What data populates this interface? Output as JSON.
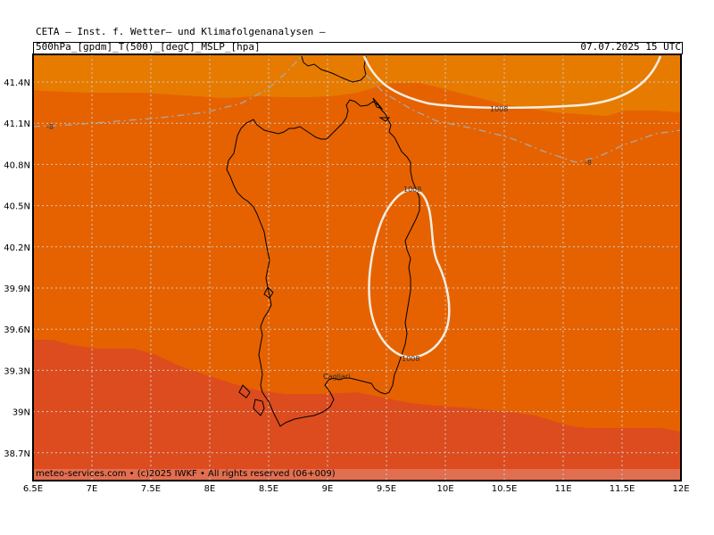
{
  "header": {
    "title": "CETA  —  Inst. f. Wetter— und Klimafolgenanalysen  —",
    "params": "500hPa_[gpdm]_T(500)_[degC]_MSLP_[hpa]",
    "valid_time": "07.07.2025 15 UTC"
  },
  "map": {
    "lat_labels": [
      "41.4N",
      "41.1N",
      "40.8N",
      "40.5N",
      "40.2N",
      "39.9N",
      "39.6N",
      "39.3N",
      "39N",
      "38.7N"
    ],
    "lon_labels": [
      "6.5E",
      "7E",
      "7.5E",
      "8E",
      "8.5E",
      "9E",
      "9.5E",
      "10E",
      "10.5E",
      "11E",
      "11.5E",
      "12E"
    ],
    "city": "Cagliari",
    "isobar_labels": [
      "1008",
      "1008",
      "1008"
    ],
    "isotherm_labels": [
      "-8",
      "-8"
    ],
    "colors": {
      "band_light": "#e77b00",
      "band_mid": "#e66200",
      "band_dark": "#dd4c1e",
      "isobar": "#f4eee2",
      "isotherm": "#a8a8a8"
    }
  },
  "footer": {
    "credit": "meteo-services.com • (c)2025 IWKF • All rights reserved (06+009)"
  }
}
